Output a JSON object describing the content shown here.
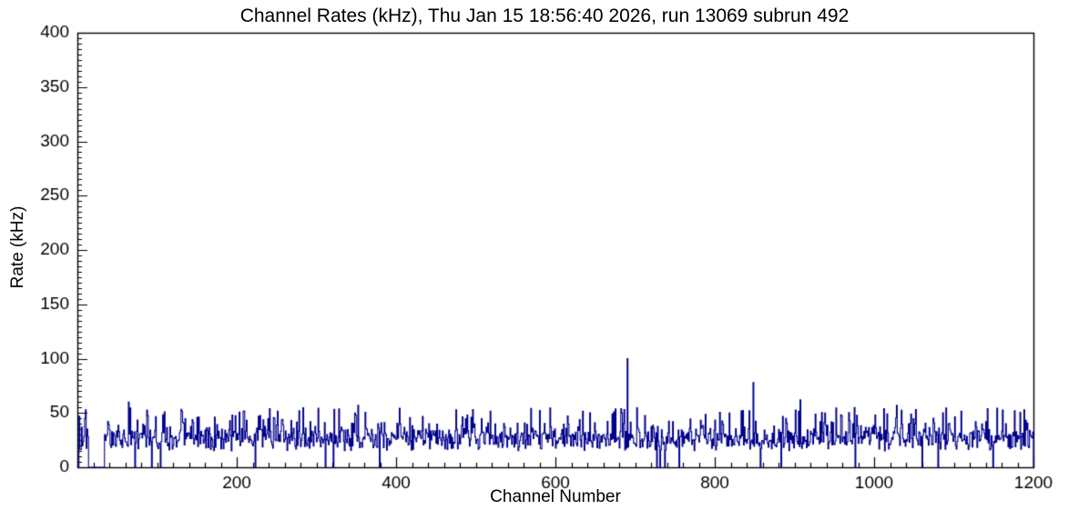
{
  "title": "Channel Rates (kHz), Thu Jan 15 18:56:40 2026, run 13069 subrun 492",
  "colors": {
    "background": "#ffffff",
    "axis": "#000000",
    "histogram": "#00008b",
    "text": "#000000"
  },
  "chart_data": {
    "type": "bar",
    "title": "Channel Rates (kHz), Thu Jan 15 18:56:40 2026, run 13069 subrun 492",
    "xlabel": "Channel Number",
    "ylabel": "Rate (kHz)",
    "xlim": [
      0,
      1200
    ],
    "ylim": [
      0,
      400
    ],
    "x_major_ticks": [
      200,
      400,
      600,
      800,
      1000,
      1200
    ],
    "x_major_tick_labels": [
      "200",
      "400",
      "600",
      "800",
      "1000",
      "1200"
    ],
    "x_minor_step": 20,
    "y_major_ticks": [
      0,
      50,
      100,
      150,
      200,
      250,
      300,
      350,
      400
    ],
    "y_major_tick_labels": [
      "0",
      "50",
      "100",
      "150",
      "200",
      "250",
      "300",
      "350",
      "400"
    ],
    "y_minor_step": 5,
    "grid": false,
    "legend": false,
    "series_style": "step-histogram",
    "series_color": "#00008b",
    "description": "Per-channel trigger rates; dense noisy baseline around 25-30 kHz spanning channels ~2-1200 with isolated spikes",
    "generation": {
      "seed": 13069,
      "n_channels": 1200,
      "first_channel": 2,
      "baseline_mean": 27,
      "baseline_sigma": 7,
      "min_value": 15,
      "max_typical": 55,
      "tall_probability": 0.12,
      "zero_probability": 0.015,
      "gaps": [
        [
          14,
          33
        ]
      ],
      "spikes": [
        {
          "x": 2,
          "y": 47
        },
        {
          "x": 64,
          "y": 60
        },
        {
          "x": 352,
          "y": 57
        },
        {
          "x": 690,
          "y": 100
        },
        {
          "x": 848,
          "y": 78
        },
        {
          "x": 907,
          "y": 62
        },
        {
          "x": 975,
          "y": 55
        },
        {
          "x": 1028,
          "y": 57
        },
        {
          "x": 1176,
          "y": 52
        }
      ]
    }
  }
}
